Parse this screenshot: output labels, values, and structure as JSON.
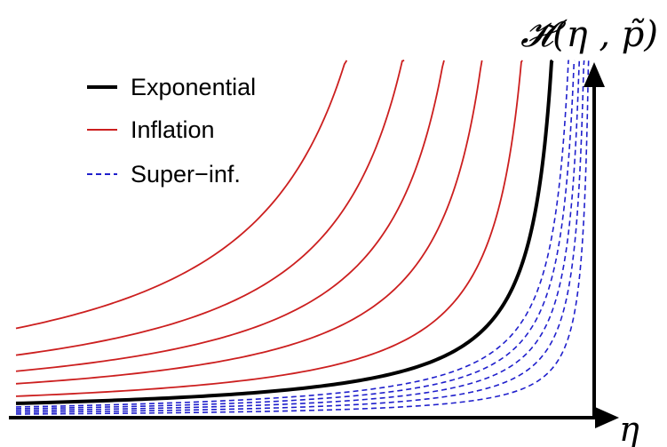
{
  "chart_data": {
    "type": "line",
    "xlabel": "η",
    "ylabel": "𝓗̃(η , p̃)",
    "legend": {
      "placement": "top-left",
      "entries": [
        {
          "label": "Exponential",
          "color": "#000000",
          "style": "solid-thick"
        },
        {
          "label": "Inflation",
          "color": "#cc1f1f",
          "style": "solid"
        },
        {
          "label": "Super−inf.",
          "color": "#1f1fcc",
          "style": "dashed"
        }
      ]
    },
    "axes": {
      "x_ticks": "none",
      "y_ticks": "none",
      "grid": false
    },
    "series": [
      {
        "group": "Inflation",
        "color": "#cc1f1f",
        "asymptote_x": 0.76,
        "base_level": 0.25
      },
      {
        "group": "Inflation",
        "color": "#cc1f1f",
        "asymptote_x": 0.81,
        "base_level": 0.175
      },
      {
        "group": "Inflation",
        "color": "#cc1f1f",
        "asymptote_x": 0.85,
        "base_level": 0.13
      },
      {
        "group": "Inflation",
        "color": "#cc1f1f",
        "asymptote_x": 0.89,
        "base_level": 0.095
      },
      {
        "group": "Inflation",
        "color": "#cc1f1f",
        "asymptote_x": 0.93,
        "base_level": 0.06
      },
      {
        "group": "Exponential",
        "color": "#000000",
        "asymptote_x": 0.965,
        "base_level": 0.04
      },
      {
        "group": "Super-inf.",
        "color": "#1f1fcc",
        "asymptote_x": 0.985,
        "base_level": 0.03
      },
      {
        "group": "Super-inf.",
        "color": "#1f1fcc",
        "asymptote_x": 0.99,
        "base_level": 0.025
      },
      {
        "group": "Super-inf.",
        "color": "#1f1fcc",
        "asymptote_x": 0.994,
        "base_level": 0.02
      },
      {
        "group": "Super-inf.",
        "color": "#1f1fcc",
        "asymptote_x": 0.997,
        "base_level": 0.015
      },
      {
        "group": "Super-inf.",
        "color": "#1f1fcc",
        "asymptote_x": 1.0,
        "base_level": 0.01
      }
    ]
  }
}
